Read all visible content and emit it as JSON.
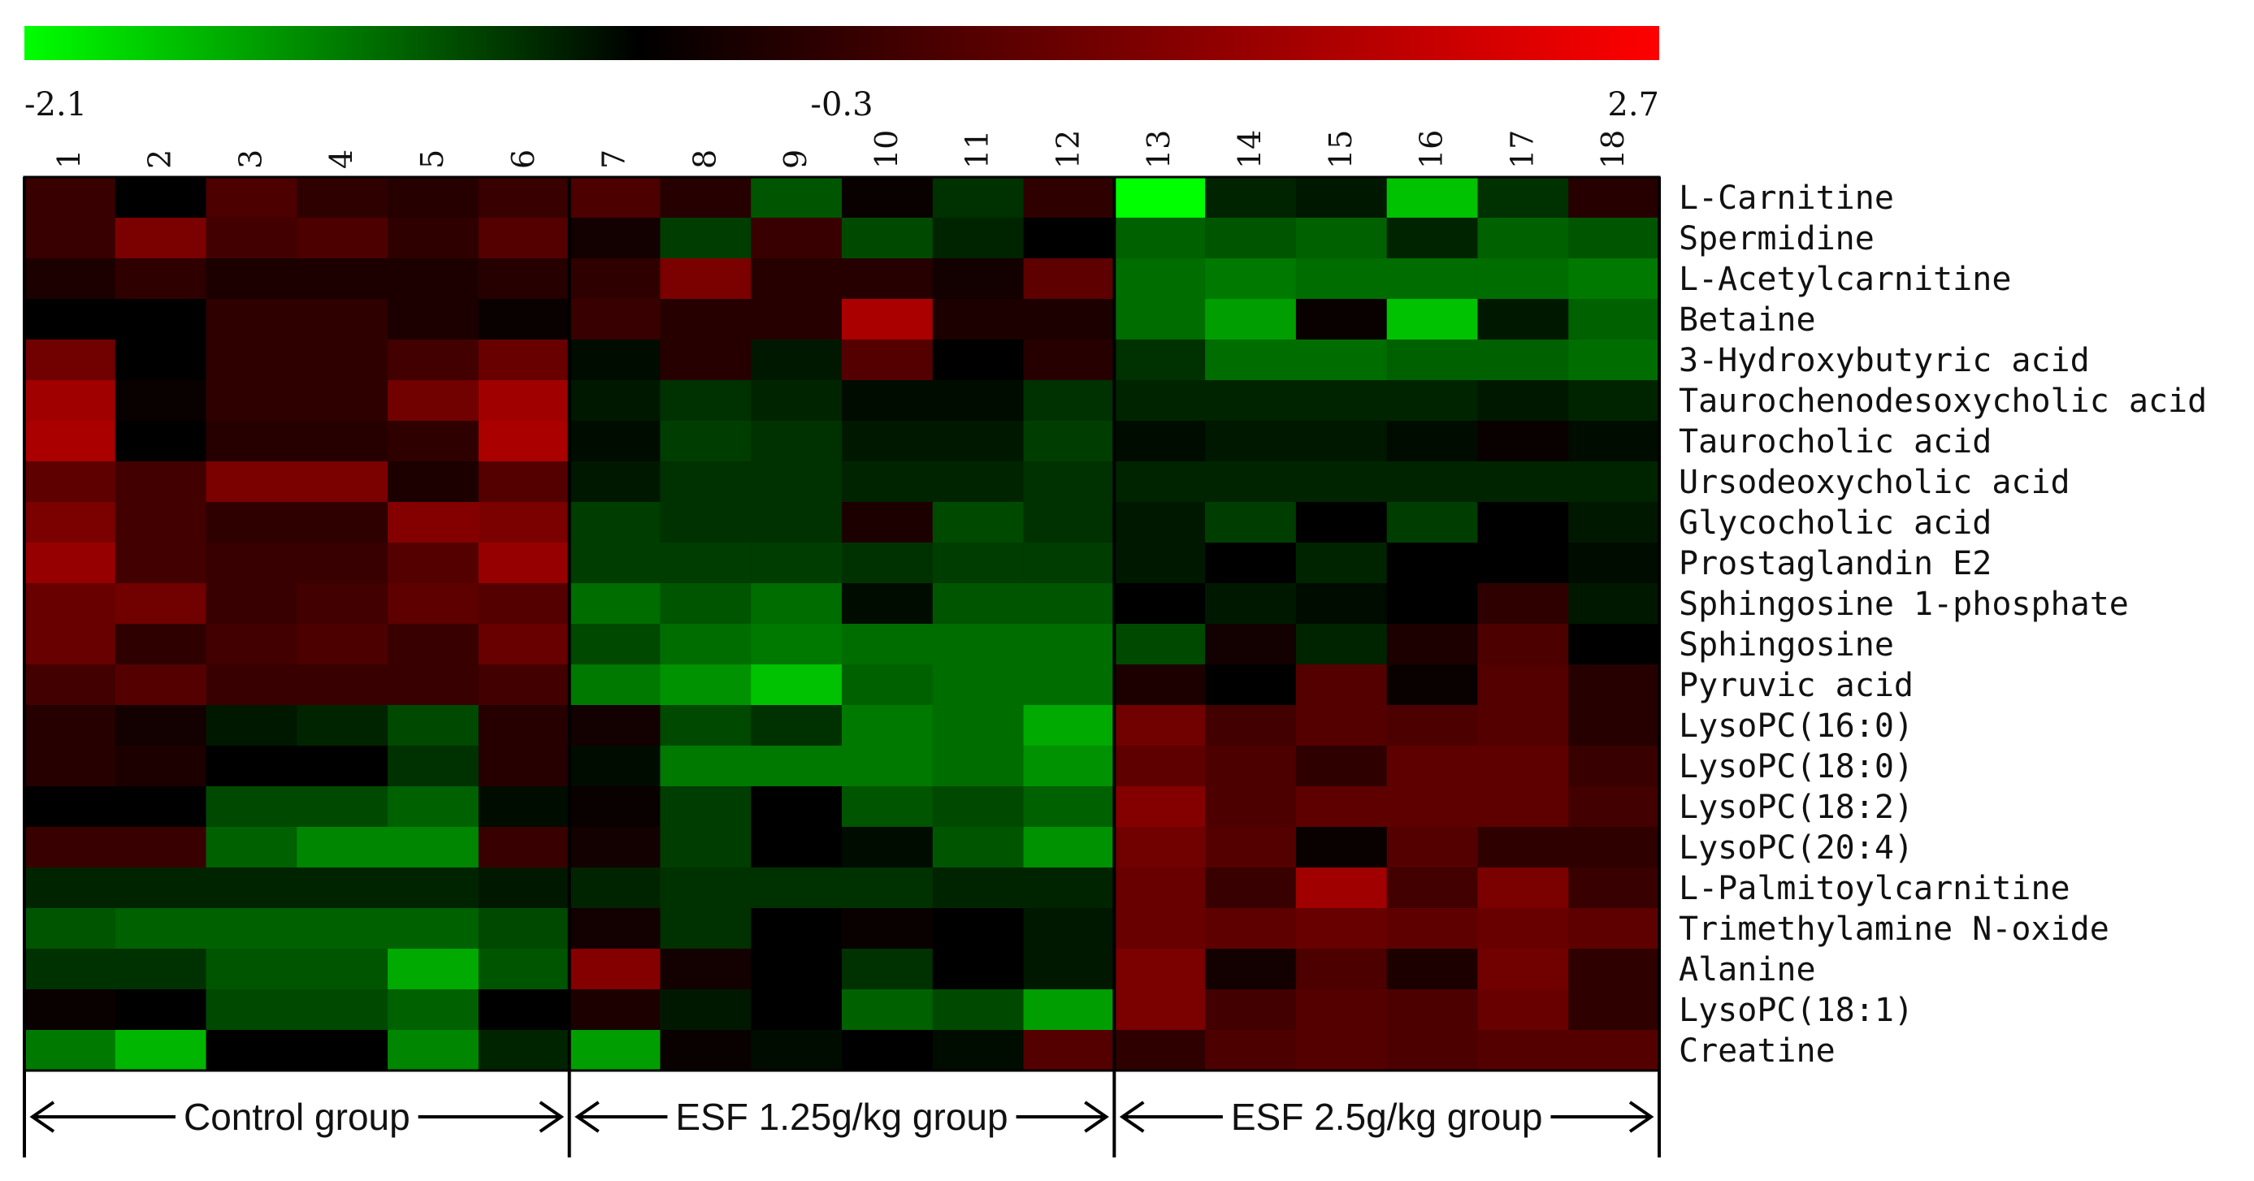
{
  "chart_data": {
    "type": "heatmap",
    "colorscale": {
      "low": "#00ff00",
      "mid": "#000000",
      "high": "#ff0000"
    },
    "scale_labels": [
      "-2.1",
      "-0.3",
      "2.7"
    ],
    "zlim": [
      -2.1,
      2.7
    ],
    "columns": [
      "1",
      "2",
      "3",
      "4",
      "5",
      "6",
      "7",
      "8",
      "9",
      "10",
      "11",
      "12",
      "13",
      "14",
      "15",
      "16",
      "17",
      "18"
    ],
    "rows": [
      "L-Carnitine",
      "Spermidine",
      "L-Acetylcarnitine",
      "Betaine",
      "3-Hydroxybutyric acid",
      "Taurochenodesoxycholic acid",
      "Taurocholic acid",
      "Ursodeoxycholic acid",
      "Glycocholic acid",
      "Prostaglandin E2",
      "Sphingosine 1-phosphate",
      "Sphingosine",
      "Pyruvic acid",
      "LysoPC(16:0)",
      "LysoPC(18:0)",
      "LysoPC(18:2)",
      "LysoPC(20:4)",
      "L-Palmitoylcarnitine",
      "Trimethylamine N-oxide",
      "Alanine",
      "LysoPC(18:1)",
      "Creatine"
    ],
    "groups": [
      {
        "label": "Control group",
        "columns": [
          1,
          6
        ]
      },
      {
        "label": "ESF 1.25g/kg group",
        "columns": [
          7,
          12
        ]
      },
      {
        "label": "ESF 2.5g/kg group",
        "columns": [
          13,
          18
        ]
      }
    ],
    "values": [
      [
        0.6,
        0.0,
        0.8,
        0.5,
        0.4,
        0.6,
        0.8,
        0.4,
        -0.7,
        0.1,
        -0.4,
        0.5,
        -2.1,
        -0.3,
        -0.2,
        -1.6,
        -0.4,
        0.4
      ],
      [
        0.6,
        1.3,
        0.7,
        0.8,
        0.5,
        0.9,
        0.2,
        -0.5,
        0.6,
        -0.6,
        -0.3,
        0.0,
        -0.8,
        -0.7,
        -0.8,
        -0.3,
        -0.8,
        -0.7
      ],
      [
        0.3,
        0.5,
        0.3,
        0.3,
        0.3,
        0.4,
        0.5,
        1.3,
        0.4,
        0.4,
        0.2,
        1.0,
        -0.9,
        -1.0,
        -0.9,
        -0.9,
        -0.9,
        -1.0
      ],
      [
        0.0,
        0.0,
        0.5,
        0.5,
        0.3,
        0.1,
        0.6,
        0.4,
        0.4,
        1.8,
        0.3,
        0.3,
        -0.9,
        -1.3,
        0.1,
        -1.6,
        -0.2,
        -0.8
      ],
      [
        1.2,
        0.0,
        0.5,
        0.5,
        0.7,
        1.1,
        -0.1,
        0.4,
        -0.2,
        0.9,
        0.0,
        0.4,
        -0.4,
        -0.9,
        -0.9,
        -0.8,
        -0.8,
        -0.9
      ],
      [
        1.7,
        0.1,
        0.5,
        0.5,
        1.2,
        1.7,
        -0.2,
        -0.4,
        -0.3,
        -0.1,
        -0.1,
        -0.4,
        -0.3,
        -0.3,
        -0.3,
        -0.3,
        -0.2,
        -0.3
      ],
      [
        1.8,
        0.0,
        0.4,
        0.4,
        0.5,
        1.8,
        -0.1,
        -0.5,
        -0.4,
        -0.2,
        -0.2,
        -0.5,
        -0.1,
        -0.2,
        -0.2,
        -0.1,
        0.1,
        -0.1
      ],
      [
        1.0,
        0.7,
        1.3,
        1.3,
        0.3,
        0.9,
        -0.2,
        -0.4,
        -0.4,
        -0.3,
        -0.3,
        -0.4,
        -0.3,
        -0.3,
        -0.3,
        -0.3,
        -0.3,
        -0.3
      ],
      [
        1.3,
        0.7,
        0.5,
        0.5,
        1.4,
        1.3,
        -0.5,
        -0.4,
        -0.4,
        0.3,
        -0.6,
        -0.4,
        -0.2,
        -0.5,
        0.0,
        -0.5,
        0.0,
        -0.2
      ],
      [
        1.6,
        0.7,
        0.6,
        0.6,
        0.9,
        1.6,
        -0.5,
        -0.5,
        -0.5,
        -0.4,
        -0.5,
        -0.5,
        -0.2,
        0.0,
        -0.3,
        0.0,
        0.0,
        -0.1
      ],
      [
        1.1,
        1.2,
        0.6,
        0.7,
        1.0,
        0.9,
        -0.9,
        -0.7,
        -0.9,
        -0.1,
        -0.7,
        -0.7,
        0.0,
        -0.2,
        -0.1,
        0.0,
        0.5,
        -0.2
      ],
      [
        1.1,
        0.5,
        0.7,
        0.8,
        0.6,
        1.1,
        -0.6,
        -0.9,
        -1.0,
        -0.9,
        -0.9,
        -0.9,
        -0.6,
        0.2,
        -0.3,
        0.3,
        0.8,
        0.0
      ],
      [
        0.7,
        0.9,
        0.6,
        0.6,
        0.6,
        0.7,
        -1.0,
        -1.2,
        -1.6,
        -0.8,
        -0.9,
        -0.9,
        0.3,
        0.0,
        0.9,
        0.1,
        0.9,
        0.4
      ],
      [
        0.4,
        0.2,
        -0.2,
        -0.3,
        -0.6,
        0.4,
        0.2,
        -0.6,
        -0.4,
        -1.0,
        -0.9,
        -1.4,
        1.2,
        0.7,
        0.9,
        0.8,
        0.9,
        0.4
      ],
      [
        0.4,
        0.3,
        0.0,
        0.0,
        -0.4,
        0.4,
        -0.1,
        -1.0,
        -1.0,
        -1.0,
        -0.9,
        -1.2,
        1.0,
        0.8,
        0.5,
        1.0,
        1.0,
        0.6
      ],
      [
        0.0,
        0.0,
        -0.6,
        -0.6,
        -0.8,
        -0.1,
        0.1,
        -0.5,
        0.0,
        -0.7,
        -0.6,
        -0.8,
        1.4,
        0.8,
        1.0,
        1.0,
        1.0,
        0.7
      ],
      [
        0.6,
        0.6,
        -0.8,
        -1.1,
        -1.1,
        0.6,
        0.2,
        -0.5,
        0.0,
        -0.1,
        -0.7,
        -1.2,
        1.2,
        0.9,
        0.1,
        0.9,
        0.5,
        0.5
      ],
      [
        -0.3,
        -0.3,
        -0.3,
        -0.3,
        -0.3,
        -0.2,
        -0.3,
        -0.4,
        -0.4,
        -0.4,
        -0.3,
        -0.3,
        1.1,
        0.6,
        1.7,
        0.7,
        1.3,
        0.6
      ],
      [
        -0.7,
        -0.8,
        -0.8,
        -0.8,
        -0.8,
        -0.6,
        0.2,
        -0.4,
        0.0,
        0.1,
        0.0,
        -0.2,
        1.1,
        1.0,
        1.1,
        1.0,
        1.1,
        1.0
      ],
      [
        -0.4,
        -0.4,
        -0.7,
        -0.7,
        -1.4,
        -0.7,
        1.4,
        0.2,
        0.0,
        -0.4,
        0.0,
        -0.2,
        1.3,
        0.2,
        0.8,
        0.3,
        1.2,
        0.5
      ],
      [
        0.1,
        0.0,
        -0.6,
        -0.6,
        -0.8,
        0.0,
        0.3,
        -0.2,
        0.0,
        -0.8,
        -0.6,
        -1.3,
        1.3,
        0.7,
        0.9,
        0.8,
        1.1,
        0.5
      ],
      [
        -1.0,
        -1.5,
        0.0,
        0.0,
        -1.1,
        -0.3,
        -1.3,
        0.1,
        -0.1,
        0.0,
        -0.1,
        0.9,
        0.5,
        0.8,
        0.9,
        0.8,
        0.9,
        0.9
      ]
    ]
  }
}
